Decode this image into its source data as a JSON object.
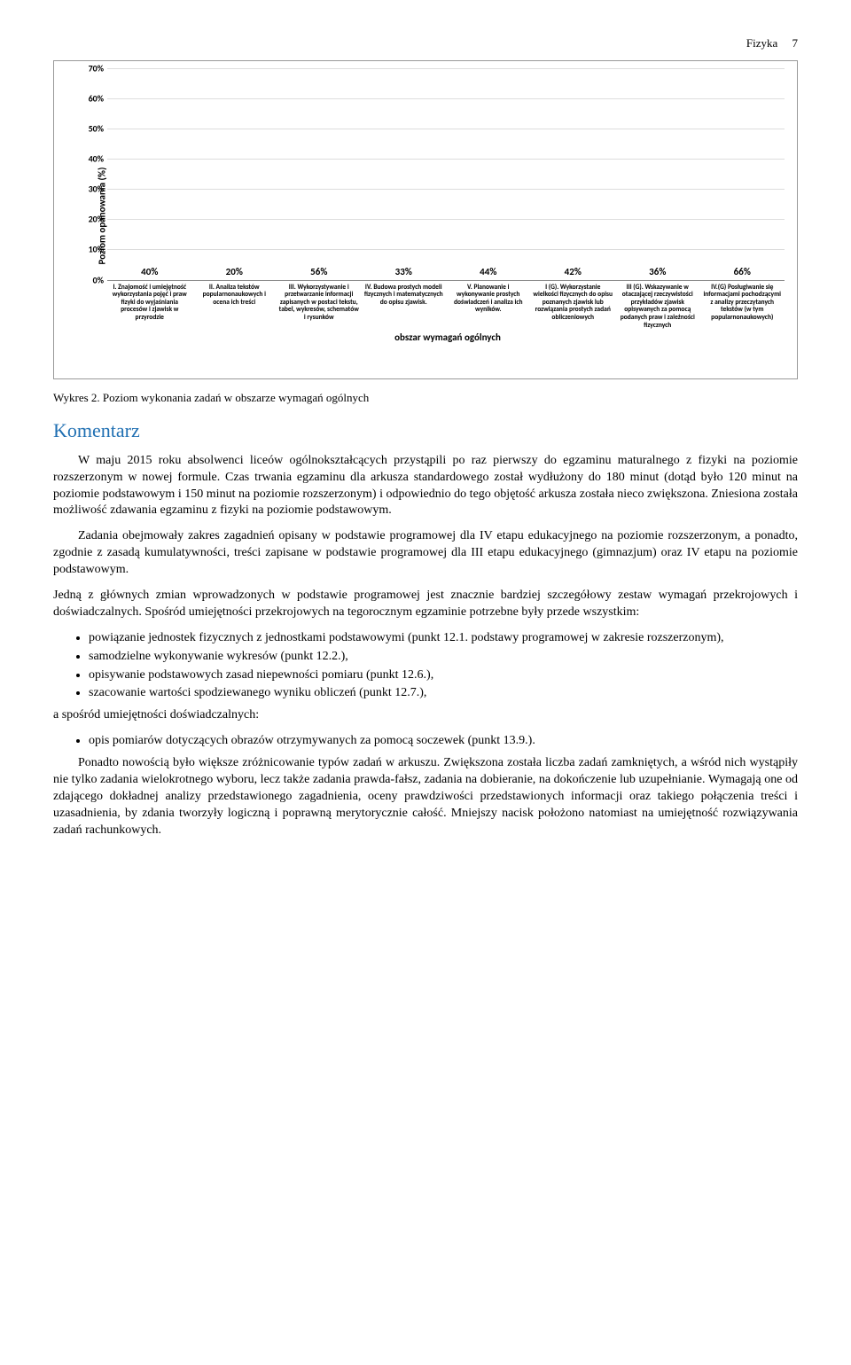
{
  "header": {
    "subject": "Fizyka",
    "page_number": "7"
  },
  "chart": {
    "type": "bar",
    "y_axis_title": "Poziom opanowania (%)",
    "x_axis_title": "obszar wymagań ogólnych",
    "ylim": [
      0,
      70
    ],
    "ytick_step": 10,
    "y_ticks": [
      "0%",
      "10%",
      "20%",
      "30%",
      "40%",
      "50%",
      "60%",
      "70%"
    ],
    "grid_color": "#dddddd",
    "axis_color": "#888888",
    "background": "#ffffff",
    "bars": [
      {
        "value": 40,
        "label": "40%",
        "color": "#19b24b",
        "category": "I. Znajomość i umiejętność wykorzystania pojęć i praw fizyki do wyjaśniania procesów i zjawisk w przyrodzie"
      },
      {
        "value": 20,
        "label": "20%",
        "color": "#5c337f",
        "category": "II. Analiza tekstów popularnonaukowych i ocena ich treści"
      },
      {
        "value": 56,
        "label": "56%",
        "color": "#e05a18",
        "category": "III. Wykorzystywanie i przetwarzanie informacji zapisanych w postaci tekstu, tabel, wykresów, schematów i rysunków"
      },
      {
        "value": 33,
        "label": "33%",
        "color": "#ffeb00",
        "category": "IV. Budowa prostych modeli fizycznych i matematycznych do opisu zjawisk."
      },
      {
        "value": 44,
        "label": "44%",
        "color": "#3a78c4",
        "category": "V. Planowanie i wykonywanie prostych doświadczeń i analiza ich wyników."
      },
      {
        "value": 42,
        "label": "42%",
        "color": "#7ee016",
        "category": "I (G). Wykorzystanie wielkości fizycznych do opisu poznanych zjawisk lub rozwiązania prostych zadań obliczeniowych"
      },
      {
        "value": 36,
        "label": "36%",
        "color": "#ef8b3a",
        "category": "III (G). Wskazywanie w otaczającej rzeczywistości przykładów zjawisk opisywanych za pomocą podanych praw i zależności fizycznych"
      },
      {
        "value": 66,
        "label": "66%",
        "color": "#c5bfe6",
        "category": "IV.(G) Posługiwanie się informacjami pochodzącymi z analizy przeczytanych tekstów (w tym popularnonaukowych)"
      }
    ]
  },
  "figure_caption": "Wykres 2. Poziom wykonania zadań w obszarze wymagań ogólnych",
  "komentarz_heading": "Komentarz",
  "paragraphs": {
    "p1": "W maju 2015 roku absolwenci liceów ogólnokształcących przystąpili po raz pierwszy do egzaminu maturalnego z fizyki na poziomie rozszerzonym w nowej formule. Czas trwania egzaminu dla arkusza standardowego został wydłużony do 180 minut (dotąd było 120 minut na poziomie podstawowym i 150 minut na poziomie rozszerzonym) i odpowiednio do tego objętość arkusza została nieco zwiększona. Zniesiona została możliwość zdawania egzaminu z fizyki na poziomie podstawowym.",
    "p2": "Zadania obejmowały zakres zagadnień opisany w podstawie programowej dla IV etapu edukacyjnego na poziomie rozszerzonym, a ponadto, zgodnie z zasadą kumulatywności, treści zapisane w podstawie programowej dla III etapu edukacyjnego (gimnazjum) oraz IV etapu na poziomie podstawowym.",
    "p3": "Jedną z głównych zmian wprowadzonych w podstawie programowej jest znacznie bardziej szczegółowy zestaw wymagań przekrojowych i doświadczalnych. Spośród umiejętności przekrojowych na tegorocznym egzaminie potrzebne były przede wszystkim:",
    "p4_intro": "a spośród umiejętności doświadczalnych:",
    "p5": "Ponadto nowością było większe zróżnicowanie typów zadań w arkuszu. Zwiększona została liczba zadań zamkniętych, a wśród nich wystąpiły nie tylko zadania wielokrotnego wyboru, lecz także zadania prawda-fałsz, zadania na dobieranie, na dokończenie lub uzupełnianie. Wymagają one od zdającego dokładnej analizy przedstawionego zagadnienia, oceny prawdziwości przedstawionych informacji oraz takiego połączenia treści i uzasadnienia, by zdania tworzyły logiczną i poprawną merytorycznie całość. Mniejszy nacisk położono natomiast na umiejętność rozwiązywania zadań rachunkowych."
  },
  "bullets_a": [
    "powiązanie jednostek fizycznych z jednostkami podstawowymi (punkt 12.1. podstawy programowej w zakresie rozszerzonym),",
    "samodzielne wykonywanie wykresów (punkt 12.2.),",
    "opisywanie podstawowych zasad niepewności pomiaru (punkt 12.6.),",
    "szacowanie wartości spodziewanego wyniku obliczeń (punkt 12.7.),"
  ],
  "bullets_b": [
    "opis pomiarów dotyczących obrazów otrzymywanych za pomocą soczewek (punkt 13.9.)."
  ]
}
